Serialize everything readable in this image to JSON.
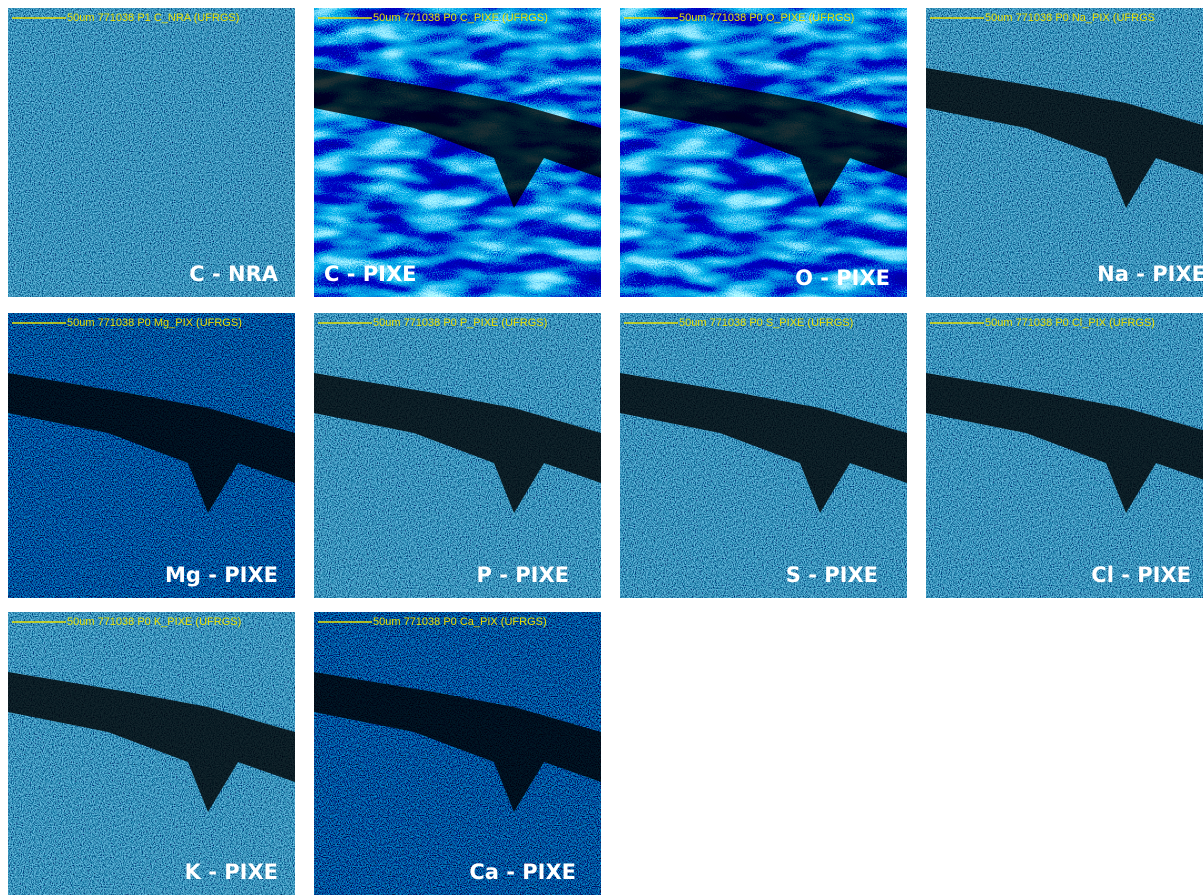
{
  "panels": [
    {
      "header": "50um  771038 P1  C_NRA (UFRGS)",
      "label": "C - NRA"
    },
    {
      "header": "50um  771038 P0  C_PIXE (UFRGS)",
      "label": "C - PIXE"
    },
    {
      "header": "50um  771038 P0  O_PIXE (UFRGS)",
      "label": "O - PIXE"
    },
    {
      "header": "50um  771038 P0  Na_PIX (UFRGS",
      "label": "Na - PIXE"
    },
    {
      "header": "50um  771038 P0  Mg_PIX (UFRGS)",
      "label": "Mg - PIXE"
    },
    {
      "header": "50um  771038 P0  P_PIXE (UFRGS)",
      "label": "P - PIXE"
    },
    {
      "header": "50um  771038 P0  S_PIXE (UFRGS)",
      "label": "S - PIXE"
    },
    {
      "header": "50um  771038 P0  Cl_PIX (UFRGS)",
      "label": "Cl - PIXE"
    },
    {
      "header": "50um  771038 P0  K_PIXE (UFRGS)",
      "label": "K - PIXE"
    },
    {
      "header": "50um  771038 P0  Ca_PIX (UFRGS)",
      "label": "Ca - PIXE"
    }
  ]
}
